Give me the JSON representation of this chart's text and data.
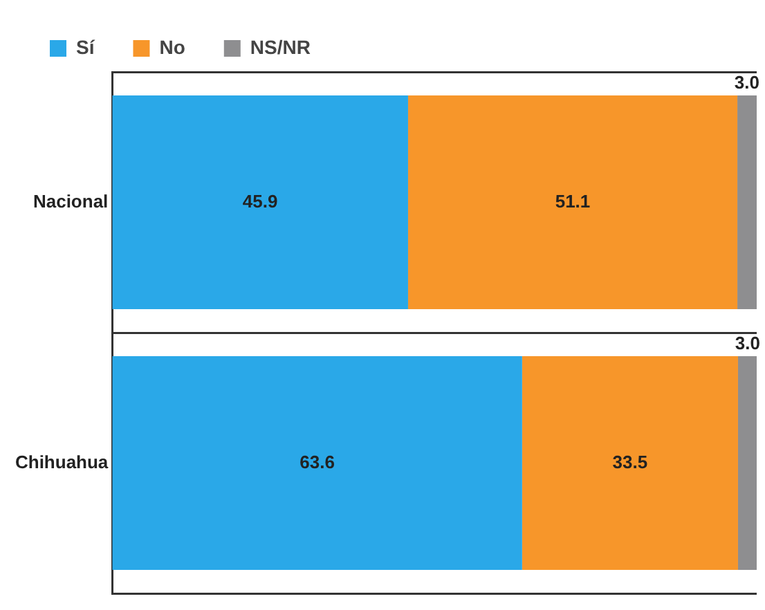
{
  "chart_data": {
    "type": "bar",
    "orientation": "horizontal",
    "stacked": true,
    "categories": [
      "Nacional",
      "Chihuahua"
    ],
    "series": [
      {
        "name": "Sí",
        "color": "#2aa8e8",
        "values": [
          45.9,
          63.6
        ]
      },
      {
        "name": "No",
        "color": "#f7962a",
        "values": [
          51.1,
          33.5
        ]
      },
      {
        "name": "NS/NR",
        "color": "#8e8e90",
        "values": [
          3,
          3
        ],
        "value_labels": [
          "3.0",
          "3.0"
        ]
      }
    ],
    "xlim": [
      0,
      100
    ],
    "tick_labels": "y",
    "grid": "y",
    "legend": "top left",
    "data_labels": true
  }
}
